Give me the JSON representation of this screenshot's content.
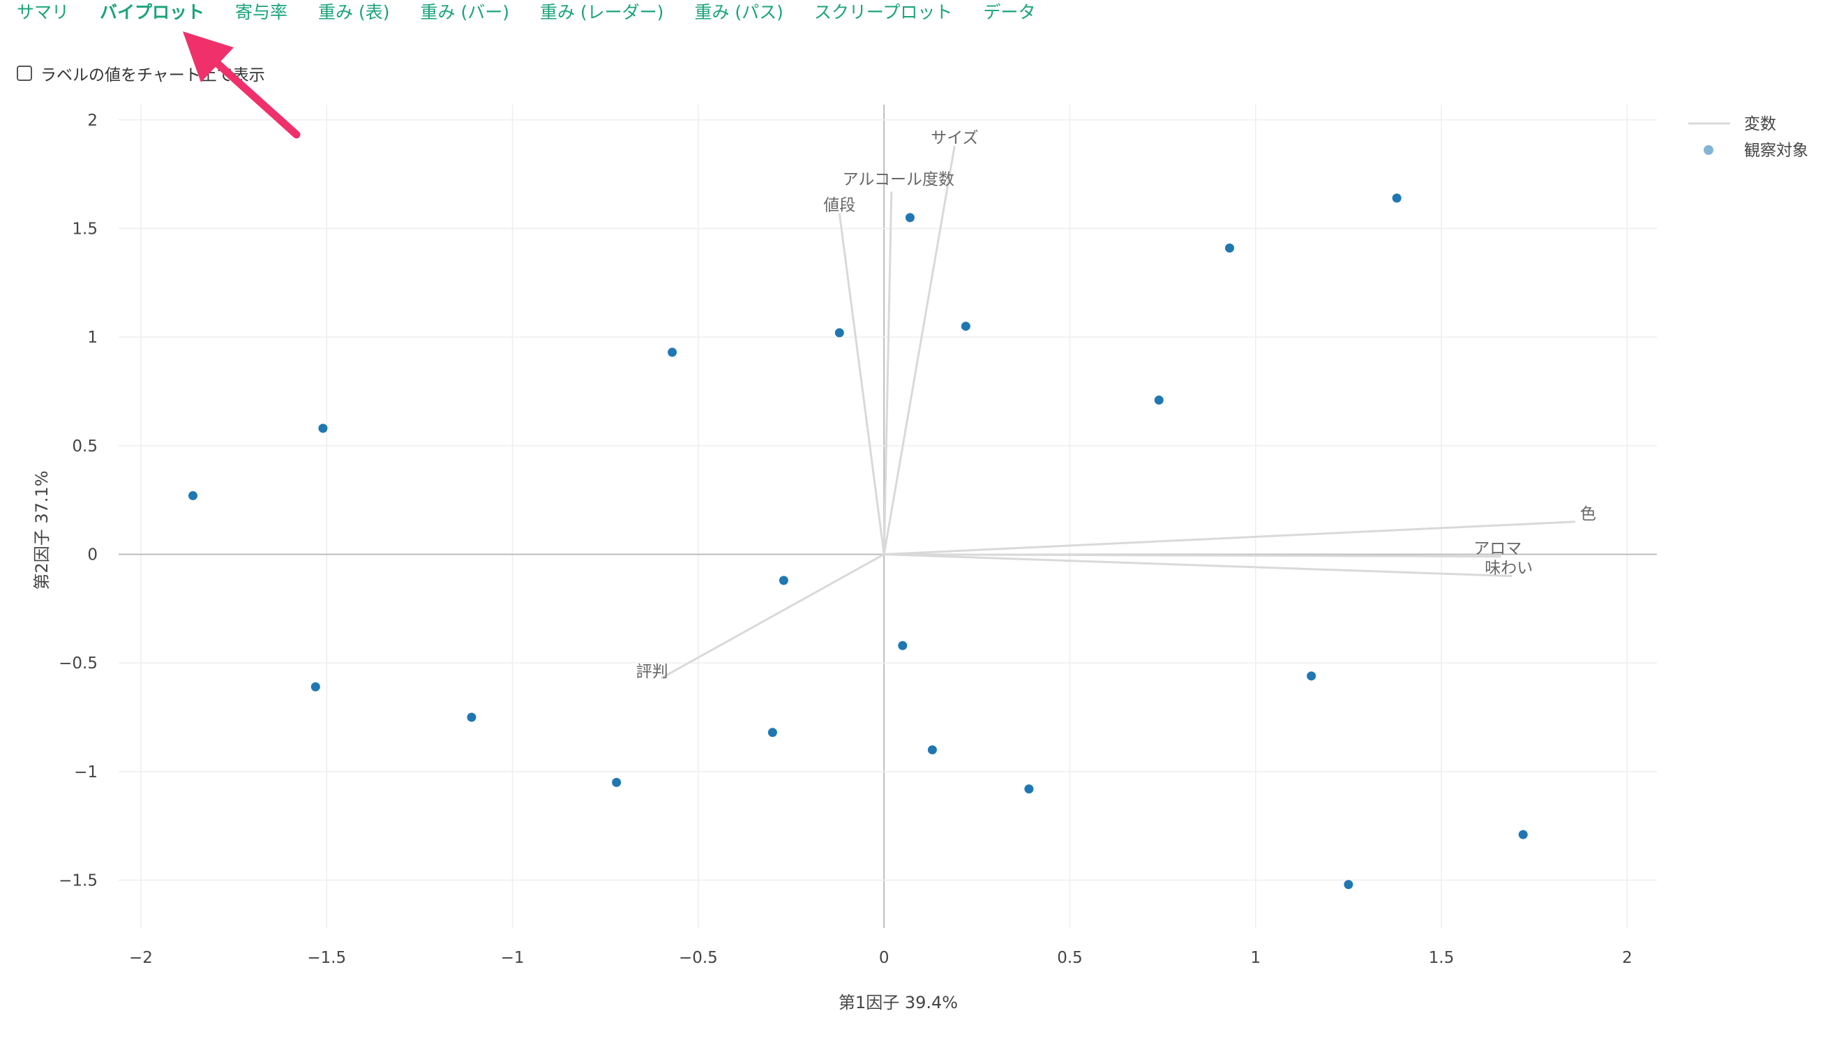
{
  "tabs": [
    {
      "label": "サマリ",
      "active": false
    },
    {
      "label": "バイプロット",
      "active": true
    },
    {
      "label": "寄与率",
      "active": false
    },
    {
      "label": "重み (表)",
      "active": false
    },
    {
      "label": "重み (バー)",
      "active": false
    },
    {
      "label": "重み (レーダー)",
      "active": false
    },
    {
      "label": "重み (パス)",
      "active": false
    },
    {
      "label": "スクリープロット",
      "active": false
    },
    {
      "label": "データ",
      "active": false
    }
  ],
  "checkbox": {
    "label": "ラベルの値をチャート上で表示",
    "checked": false
  },
  "colors": {
    "accent": "#1aa37a",
    "point": "#1f77b4",
    "vector": "#d9d9d9",
    "arrow": "#f0306a"
  },
  "chart_data": {
    "type": "scatter",
    "title": "",
    "xlabel": "第1因子 39.4%",
    "ylabel": "第2因子 37.1%",
    "xlim": [
      -2.06,
      2.08
    ],
    "ylim": [
      -1.72,
      2.07
    ],
    "xticks": [
      -2,
      -1.5,
      -1,
      -0.5,
      0,
      0.5,
      1,
      1.5,
      2
    ],
    "xtick_labels": [
      "−2",
      "−1.5",
      "−1",
      "−0.5",
      "0",
      "0.5",
      "1",
      "1.5",
      "2"
    ],
    "yticks": [
      -1.5,
      -1,
      -0.5,
      0,
      0.5,
      1,
      1.5,
      2
    ],
    "ytick_labels": [
      "−1.5",
      "−1",
      "−0.5",
      "0",
      "0.5",
      "1",
      "1.5",
      "2"
    ],
    "grid": true,
    "legend": {
      "position": "top-right",
      "entries": [
        "変数",
        "観察対象"
      ]
    },
    "series": [
      {
        "name": "変数",
        "kind": "vectors",
        "vectors": [
          {
            "label": "サイズ",
            "x": 0.19,
            "y": 1.88
          },
          {
            "label": "アルコール度数",
            "x": 0.02,
            "y": 1.67
          },
          {
            "label": "値段",
            "x": -0.12,
            "y": 1.57
          },
          {
            "label": "色",
            "x": 1.86,
            "y": 0.15
          },
          {
            "label": "アロマ",
            "x": 1.66,
            "y": -0.01
          },
          {
            "label": "味わい",
            "x": 1.69,
            "y": -0.1
          },
          {
            "label": "評判",
            "x": -0.6,
            "y": -0.57
          }
        ]
      },
      {
        "name": "観察対象",
        "kind": "points",
        "points": [
          {
            "x": -1.86,
            "y": 0.27
          },
          {
            "x": -1.51,
            "y": 0.58
          },
          {
            "x": -1.53,
            "y": -0.61
          },
          {
            "x": -1.11,
            "y": -0.75
          },
          {
            "x": -0.72,
            "y": -1.05
          },
          {
            "x": -0.57,
            "y": 0.93
          },
          {
            "x": -0.3,
            "y": -0.82
          },
          {
            "x": -0.27,
            "y": -0.12
          },
          {
            "x": -0.12,
            "y": 1.02
          },
          {
            "x": 0.05,
            "y": -0.42
          },
          {
            "x": 0.07,
            "y": 1.55
          },
          {
            "x": 0.13,
            "y": -0.9
          },
          {
            "x": 0.22,
            "y": 1.05
          },
          {
            "x": 0.39,
            "y": -1.08
          },
          {
            "x": 0.74,
            "y": 0.71
          },
          {
            "x": 0.93,
            "y": 1.41
          },
          {
            "x": 1.15,
            "y": -0.56
          },
          {
            "x": 1.25,
            "y": -1.52
          },
          {
            "x": 1.38,
            "y": 1.64
          },
          {
            "x": 1.72,
            "y": -1.29
          }
        ]
      }
    ]
  }
}
